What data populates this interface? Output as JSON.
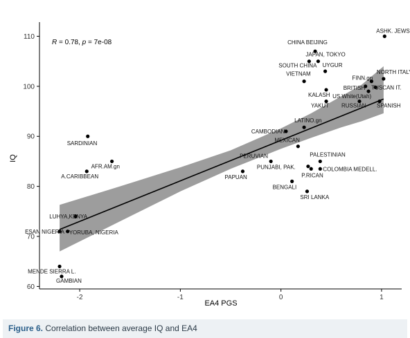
{
  "chart_data": {
    "type": "scatter",
    "title": "",
    "xlabel": "EA4 PGS",
    "ylabel": "IQ",
    "xlim": [
      -2.4,
      1.2
    ],
    "ylim": [
      59.5,
      112
    ],
    "xticks": [
      -2,
      -1,
      0,
      1
    ],
    "xtick_labels": [
      "-2",
      "-1",
      "0",
      "1"
    ],
    "yticks": [
      60,
      70,
      80,
      90,
      100,
      110
    ],
    "ytick_labels": [
      "60",
      "70",
      "80",
      "90",
      "100",
      "110"
    ],
    "grid": false,
    "annotation": {
      "r_label": "R",
      "r_value": "= 0.78, ",
      "p_label": "p",
      "p_value": "= 7e-08"
    },
    "regression": {
      "slope": 8.1,
      "intercept": 89.2,
      "x_range": [
        -2.2,
        1.02
      ]
    },
    "confidence_band": {
      "x": [
        -2.2,
        -1.6,
        -1.0,
        -0.5,
        0.0,
        0.3,
        0.6,
        0.8,
        1.02
      ],
      "lower": [
        67.0,
        73.0,
        79.0,
        83.5,
        87.5,
        89.7,
        91.8,
        93.0,
        94.6
      ],
      "upper": [
        76.3,
        80.0,
        83.8,
        87.2,
        91.6,
        94.6,
        98.0,
        100.3,
        104.0
      ]
    },
    "points": [
      {
        "label": "ASHK. JEWS",
        "x": 1.03,
        "y": 110.0
      },
      {
        "label": "CHINA BEIJING",
        "x": 0.34,
        "y": 107.0
      },
      {
        "label": "JAPAN, TOKYO",
        "x": 0.37,
        "y": 105.0
      },
      {
        "label": "SOUTH CHINA",
        "x": 0.28,
        "y": 105.0
      },
      {
        "label": "UYGUR",
        "x": 0.44,
        "y": 103.0
      },
      {
        "label": "VIETNAM",
        "x": 0.23,
        "y": 101.0
      },
      {
        "label": "FINN.gn",
        "x": 0.9,
        "y": 101.0
      },
      {
        "label": "NORTH ITALY",
        "x": 1.02,
        "y": 101.5
      },
      {
        "label": "BRITISH",
        "x": 0.84,
        "y": 100.0
      },
      {
        "label": "TUSCAN IT.",
        "x": 0.94,
        "y": 99.8
      },
      {
        "label": "KALASH",
        "x": 0.45,
        "y": 99.3
      },
      {
        "label": "US White(Utah)",
        "x": 0.87,
        "y": 99.0
      },
      {
        "label": "YAKUT",
        "x": 0.45,
        "y": 97.0
      },
      {
        "label": "RUSSIAN",
        "x": 0.78,
        "y": 97.0
      },
      {
        "label": "SPANISH",
        "x": 0.98,
        "y": 97.0
      },
      {
        "label": "LATINO.gn",
        "x": 0.23,
        "y": 91.8
      },
      {
        "label": "CAMBODIAN",
        "x": 0.05,
        "y": 91.0
      },
      {
        "label": "MEXICAN",
        "x": 0.17,
        "y": 88.0
      },
      {
        "label": "SARDINIAN",
        "x": -1.92,
        "y": 90.0
      },
      {
        "label": "AFR.AM.gn",
        "x": -1.68,
        "y": 85.0
      },
      {
        "label": "A.CARIBBEAN",
        "x": -1.93,
        "y": 83.0
      },
      {
        "label": "PERUVIAN",
        "x": -0.1,
        "y": 85.0
      },
      {
        "label": "PALESTINIAN",
        "x": 0.39,
        "y": 85.0
      },
      {
        "label": "PUNJABI, PAK.",
        "x": 0.27,
        "y": 84.0
      },
      {
        "label": "COLOMBIA MEDELL.",
        "x": 0.39,
        "y": 83.5
      },
      {
        "label": "P.RICAN",
        "x": 0.3,
        "y": 83.5
      },
      {
        "label": "PAPUAN",
        "x": -0.38,
        "y": 83.0
      },
      {
        "label": "BENGALI",
        "x": 0.11,
        "y": 81.0
      },
      {
        "label": "SRI LANKA",
        "x": 0.26,
        "y": 79.0
      },
      {
        "label": "LUHYA,KENYA",
        "x": -2.04,
        "y": 74.0
      },
      {
        "label": "YORUBA, NIGERIA",
        "x": -2.12,
        "y": 71.0
      },
      {
        "label": "ESAN NIGERIA",
        "x": -2.2,
        "y": 71.0
      },
      {
        "label": "MENDE SIERRA L.",
        "x": -2.2,
        "y": 64.0
      },
      {
        "label": "GAMBIAN",
        "x": -2.18,
        "y": 62.0
      }
    ]
  },
  "caption": {
    "label": "Figure 6.",
    "text": " Correlation between average IQ and EA4"
  }
}
